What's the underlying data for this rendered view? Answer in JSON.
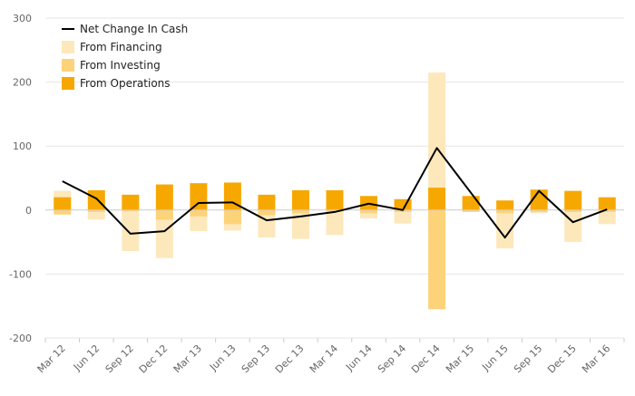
{
  "chart_data": {
    "type": "bar",
    "categories": [
      "Mar 12",
      "Jun 12",
      "Sep 12",
      "Dec 12",
      "Mar 13",
      "Jun 13",
      "Sep 13",
      "Dec 13",
      "Mar 14",
      "Jun 14",
      "Sep 14",
      "Dec 14",
      "Mar 15",
      "Jun 15",
      "Sep 15",
      "Dec 15",
      "Mar 16"
    ],
    "ylim": [
      -200,
      300
    ],
    "yticks": [
      -200,
      -100,
      0,
      100,
      200,
      300
    ],
    "grid": true,
    "legend_position": "top-left",
    "series": [
      {
        "name": "Net Change In Cash",
        "kind": "line",
        "color": "#000000",
        "values": [
          45,
          18,
          -37,
          -33,
          11,
          12,
          -16,
          -10,
          -3,
          10,
          0,
          97,
          null,
          -43,
          30,
          -19,
          1
        ]
      },
      {
        "name": "From Financing",
        "kind": "bar",
        "color": "#fde8bc",
        "values": [
          30,
          -15,
          -64,
          -75,
          -33,
          -32,
          -43,
          -45,
          -39,
          -13,
          -21,
          215,
          0,
          -60,
          -5,
          -50,
          -22
        ]
      },
      {
        "name": "From Investing",
        "kind": "bar",
        "color": "#fdd37a",
        "values": [
          -7,
          -3,
          -2,
          -15,
          -10,
          -22,
          -8,
          -5,
          -3,
          -5,
          -3,
          -155,
          -3,
          -5,
          -3,
          -3,
          -3
        ]
      },
      {
        "name": "From Operations",
        "kind": "bar",
        "color": "#f6a800",
        "values": [
          20,
          31,
          24,
          40,
          42,
          43,
          24,
          31,
          31,
          22,
          17,
          35,
          22,
          15,
          32,
          30,
          20
        ]
      }
    ]
  }
}
